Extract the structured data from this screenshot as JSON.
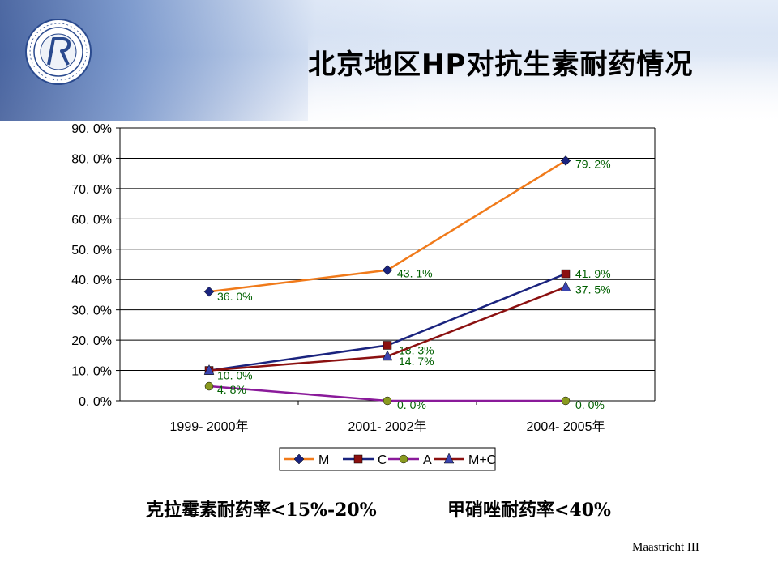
{
  "title": "北京地区HP对抗生素耐药情况",
  "footer": {
    "clarithromycin": "克拉霉素耐药率<15%-20%",
    "metronidazole": "甲硝唑耐药率<40%"
  },
  "source": "Maastricht  III",
  "chart_data": {
    "type": "line",
    "categories": [
      "1999- 2000年",
      "2001- 2002年",
      "2004- 2005年"
    ],
    "ylim": [
      0,
      90
    ],
    "yticks": [
      "0. 0%",
      "10. 0%",
      "20. 0%",
      "30. 0%",
      "40. 0%",
      "50. 0%",
      "60. 0%",
      "70. 0%",
      "80. 0%",
      "90. 0%"
    ],
    "grid": true,
    "legend_position": "bottom",
    "series": [
      {
        "name": "M",
        "values": [
          36.0,
          43.1,
          79.2
        ],
        "labels": [
          "36. 0%",
          "43. 1%",
          "79. 2%"
        ],
        "color": "#f07a1a",
        "marker_color": "#1a237e",
        "marker": "diamond"
      },
      {
        "name": "C",
        "values": [
          10.0,
          18.3,
          41.9
        ],
        "labels": [
          "10. 0%",
          "18. 3%",
          "41. 9%"
        ],
        "color": "#1a237e",
        "marker_color": "#8b1010",
        "marker": "square"
      },
      {
        "name": "A",
        "values": [
          4.8,
          0.0,
          0.0
        ],
        "labels": [
          "4. 8%",
          "0. 0%",
          "0. 0%"
        ],
        "color": "#8a1a9a",
        "marker_color": "#8a9a20",
        "marker": "circle"
      },
      {
        "name": "M+C",
        "values": [
          10.0,
          14.7,
          37.5
        ],
        "labels": [
          "",
          "14. 7%",
          "37. 5%"
        ],
        "color": "#8b1010",
        "marker_color": "#3a44b0",
        "marker": "triangle"
      }
    ]
  }
}
